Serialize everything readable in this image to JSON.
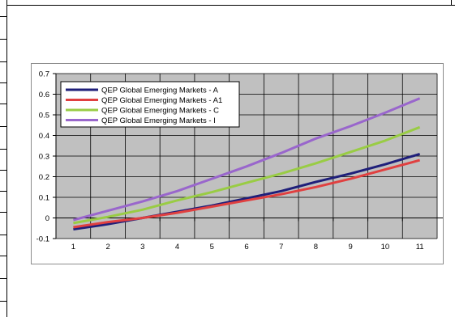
{
  "chart_data": {
    "type": "line",
    "title": "",
    "xlabel": "",
    "ylabel": "",
    "x": [
      1,
      2,
      3,
      4,
      5,
      6,
      7,
      8,
      9,
      10,
      11
    ],
    "ylim": [
      -0.1,
      0.7
    ],
    "yticks": [
      "-0.1",
      "0",
      "0.1",
      "0.2",
      "0.3",
      "0.4",
      "0.5",
      "0.6",
      "0.7"
    ],
    "xticks": [
      "1",
      "2",
      "3",
      "4",
      "5",
      "6",
      "7",
      "8",
      "9",
      "10",
      "11"
    ],
    "grid": true,
    "legend_position": "top-left",
    "plot_background": "#c0c0c0",
    "series": [
      {
        "name": "QEP Global Emerging Markets - A",
        "color": "#1f1f7a",
        "values": [
          -0.055,
          -0.03,
          0.0,
          0.03,
          0.06,
          0.095,
          0.13,
          0.175,
          0.215,
          0.26,
          0.31
        ]
      },
      {
        "name": "QEP Global Emerging Markets - A1",
        "color": "#e04040",
        "values": [
          -0.045,
          -0.02,
          0.0,
          0.025,
          0.055,
          0.085,
          0.115,
          0.15,
          0.19,
          0.235,
          0.28
        ]
      },
      {
        "name": "QEP Global Emerging Markets - C",
        "color": "#99cc44",
        "values": [
          -0.025,
          0.005,
          0.04,
          0.085,
          0.125,
          0.17,
          0.215,
          0.265,
          0.32,
          0.375,
          0.44
        ]
      },
      {
        "name": "QEP Global Emerging Markets - I",
        "color": "#9966cc",
        "values": [
          -0.01,
          0.035,
          0.08,
          0.13,
          0.19,
          0.25,
          0.315,
          0.385,
          0.445,
          0.51,
          0.58
        ]
      }
    ]
  }
}
